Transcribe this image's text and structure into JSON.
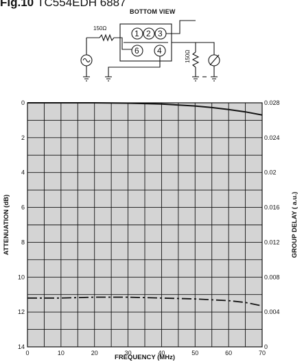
{
  "figure": {
    "fig_label": "Fig.10",
    "part_number": "TC554EDH 6887"
  },
  "schematic": {
    "view_label": "BOTTOM VIEW",
    "resistor_source": "150Ω",
    "resistor_load": "150Ω",
    "pins": [
      "1",
      "2",
      "3",
      "4",
      "6"
    ]
  },
  "chart_data": {
    "type": "line",
    "title": "",
    "xlabel": "FREQUENCY (MHz)",
    "ylabel_left": "ATTENUATION (dB)",
    "ylabel_right": "GROUP DELAY ( a.u.)",
    "xlim": [
      0,
      70
    ],
    "ylim_left": [
      0,
      14
    ],
    "ylim_left_inverted": true,
    "ylim_right": [
      0,
      0.028
    ],
    "x_ticks": [
      "0",
      "10",
      "20",
      "30",
      "40",
      "50",
      "60",
      "70"
    ],
    "y_ticks_left": [
      "0",
      "2",
      "4",
      "6",
      "8",
      "10",
      "12",
      "14"
    ],
    "y_ticks_right": [
      "0",
      "0.004",
      "0.008",
      "0.012",
      "0.016",
      "0.02",
      "0.024",
      "0.028"
    ],
    "grid": true,
    "series": [
      {
        "axis": "left",
        "style": "solid",
        "x": [
          0,
          10,
          20,
          30,
          40,
          50,
          55,
          60,
          65,
          70
        ],
        "y": [
          0.0,
          0.0,
          0.0,
          0.02,
          0.07,
          0.18,
          0.27,
          0.38,
          0.52,
          0.7
        ]
      },
      {
        "axis": "right",
        "style": "dash-dot",
        "x": [
          0,
          10,
          20,
          30,
          40,
          50,
          60,
          65,
          70
        ],
        "y": [
          0.0056,
          0.0056,
          0.0057,
          0.0057,
          0.0056,
          0.0055,
          0.0053,
          0.0051,
          0.0047
        ]
      }
    ]
  }
}
